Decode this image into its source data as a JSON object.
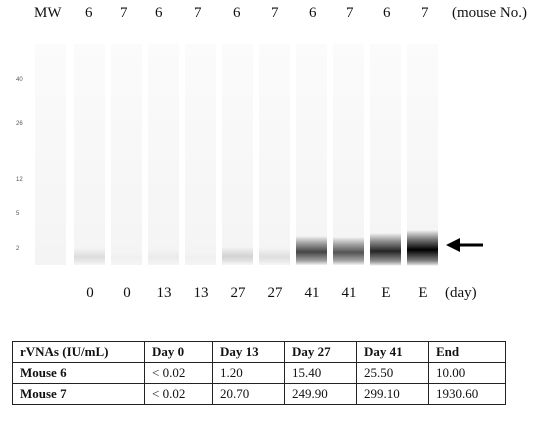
{
  "header": {
    "mw": "MW",
    "mice": [
      "6",
      "7",
      "6",
      "7",
      "6",
      "7",
      "6",
      "7",
      "6",
      "7"
    ],
    "mouse_label": "(mouse No.)"
  },
  "ladder": [
    "40",
    "26",
    "12",
    "5",
    "2"
  ],
  "days": [
    "0",
    "0",
    "13",
    "13",
    "27",
    "27",
    "41",
    "41",
    "E",
    "E"
  ],
  "day_unit": "(day)",
  "band_darkness": [
    0.1,
    0.02,
    0.04,
    0.02,
    0.14,
    0.09,
    0.72,
    0.66,
    0.85,
    1.0
  ],
  "table": {
    "headers": [
      "rVNAs (IU/mL)",
      "Day 0",
      "Day 13",
      "Day 27",
      "Day 41",
      "End"
    ],
    "rows": [
      [
        "Mouse 6",
        "< 0.02",
        "1.20",
        "15.40",
        "25.50",
        "10.00"
      ],
      [
        "Mouse 7",
        "< 0.02",
        "20.70",
        "249.90",
        "299.10",
        "1930.60"
      ]
    ]
  }
}
